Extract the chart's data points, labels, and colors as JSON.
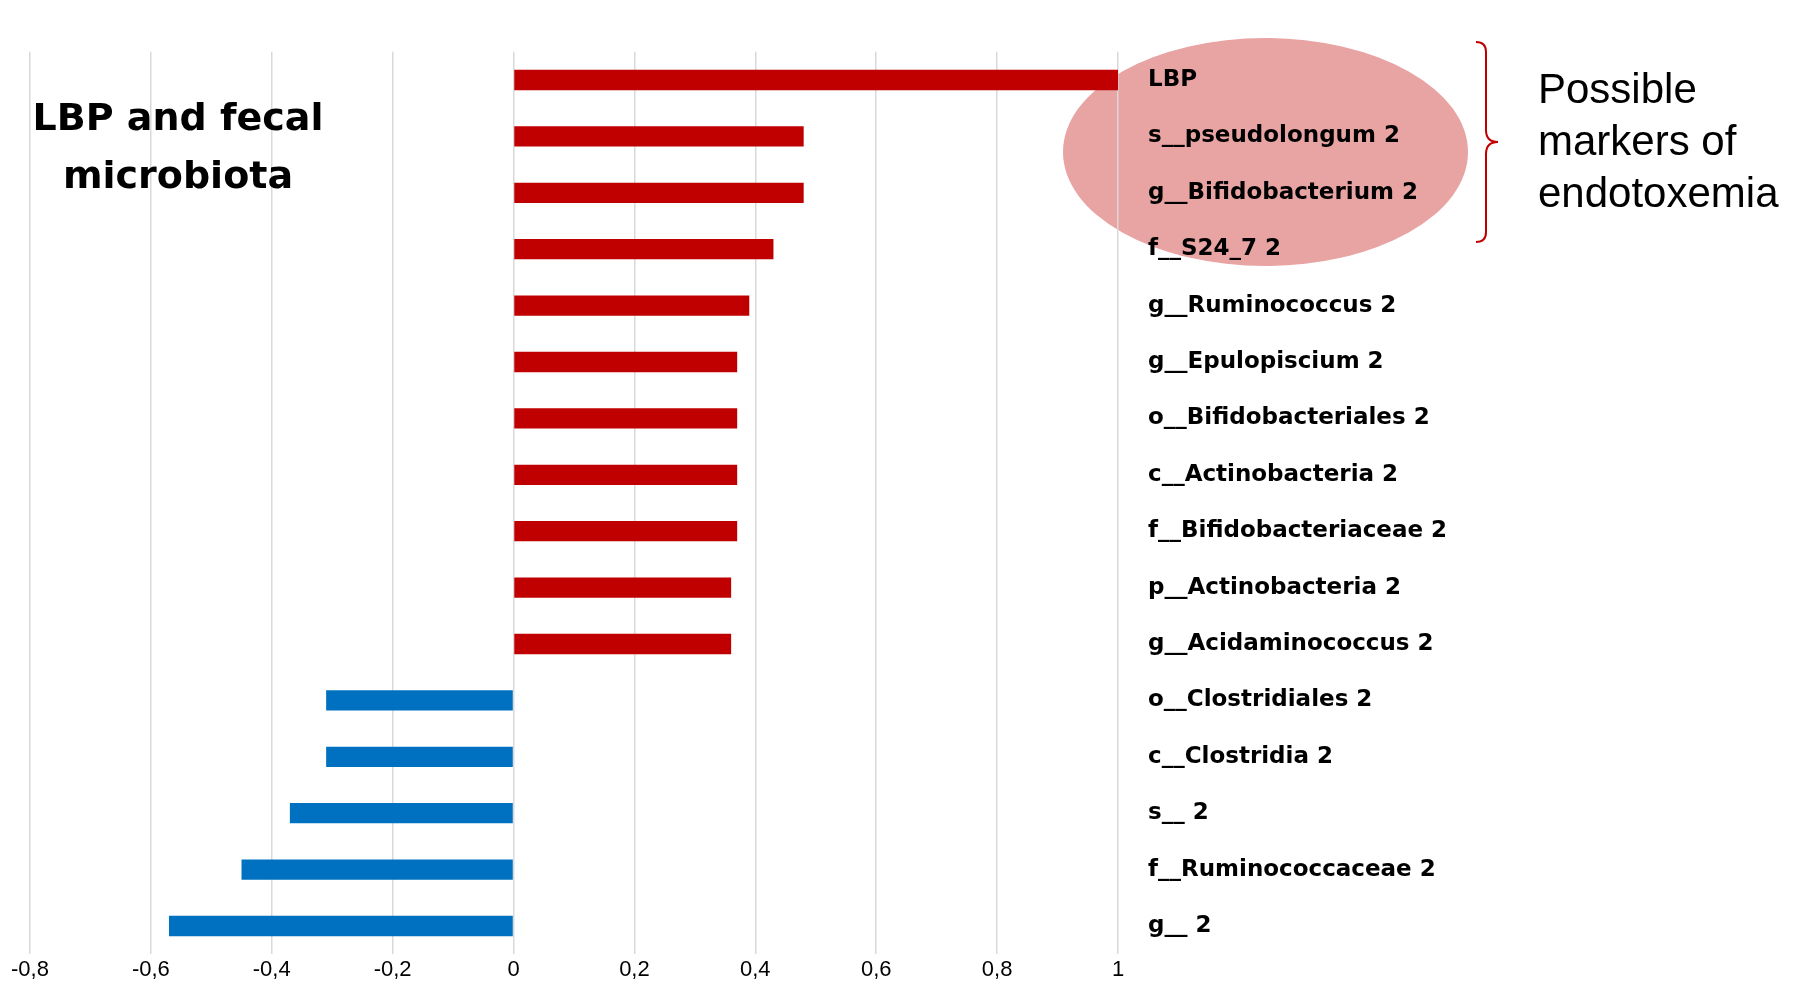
{
  "chart_data": {
    "type": "bar",
    "orientation": "horizontal",
    "title": "LBP and fecal microbiota",
    "categories": [
      "LBP",
      "s__pseudolongum 2",
      "g__Bifidobacterium 2",
      "f__S24_7 2",
      "g__Ruminococcus 2",
      "g__Epulopiscium 2",
      "o__Bifidobacteriales 2",
      "c__Actinobacteria 2",
      "f__Bifidobacteriaceae 2",
      "p__Actinobacteria 2",
      "g__Acidaminococcus 2",
      "o__Clostridiales 2",
      "c__Clostridia 2",
      "s__ 2",
      "f__Ruminococcaceae 2",
      "g__ 2"
    ],
    "values": [
      1,
      0.48,
      0.48,
      0.43,
      0.39,
      0.37,
      0.37,
      0.37,
      0.37,
      0.36,
      0.36,
      -0.31,
      -0.31,
      -0.37,
      -0.45,
      -0.57
    ],
    "colors": [
      "#c00000",
      "#c00000",
      "#c00000",
      "#c00000",
      "#c00000",
      "#c00000",
      "#c00000",
      "#c00000",
      "#c00000",
      "#c00000",
      "#c00000",
      "#0070c0",
      "#0070c0",
      "#0070c0",
      "#0070c0",
      "#0070c0"
    ],
    "xlim": [
      -0.8,
      1
    ],
    "xticks": [
      {
        "value": -0.8,
        "label": "-0,8"
      },
      {
        "value": -0.6,
        "label": "-0,6"
      },
      {
        "value": -0.4,
        "label": "-0,4"
      },
      {
        "value": -0.2,
        "label": "-0,2"
      },
      0,
      {
        "value": 0.2,
        "label": "0,2"
      },
      {
        "value": 0.4,
        "label": "0,4"
      },
      {
        "value": 0.6,
        "label": "0,6"
      },
      {
        "value": 0.8,
        "label": "0,8"
      },
      1
    ],
    "grid": "x",
    "annotations": [
      "Possible markers of endotoxemia"
    ]
  }
}
